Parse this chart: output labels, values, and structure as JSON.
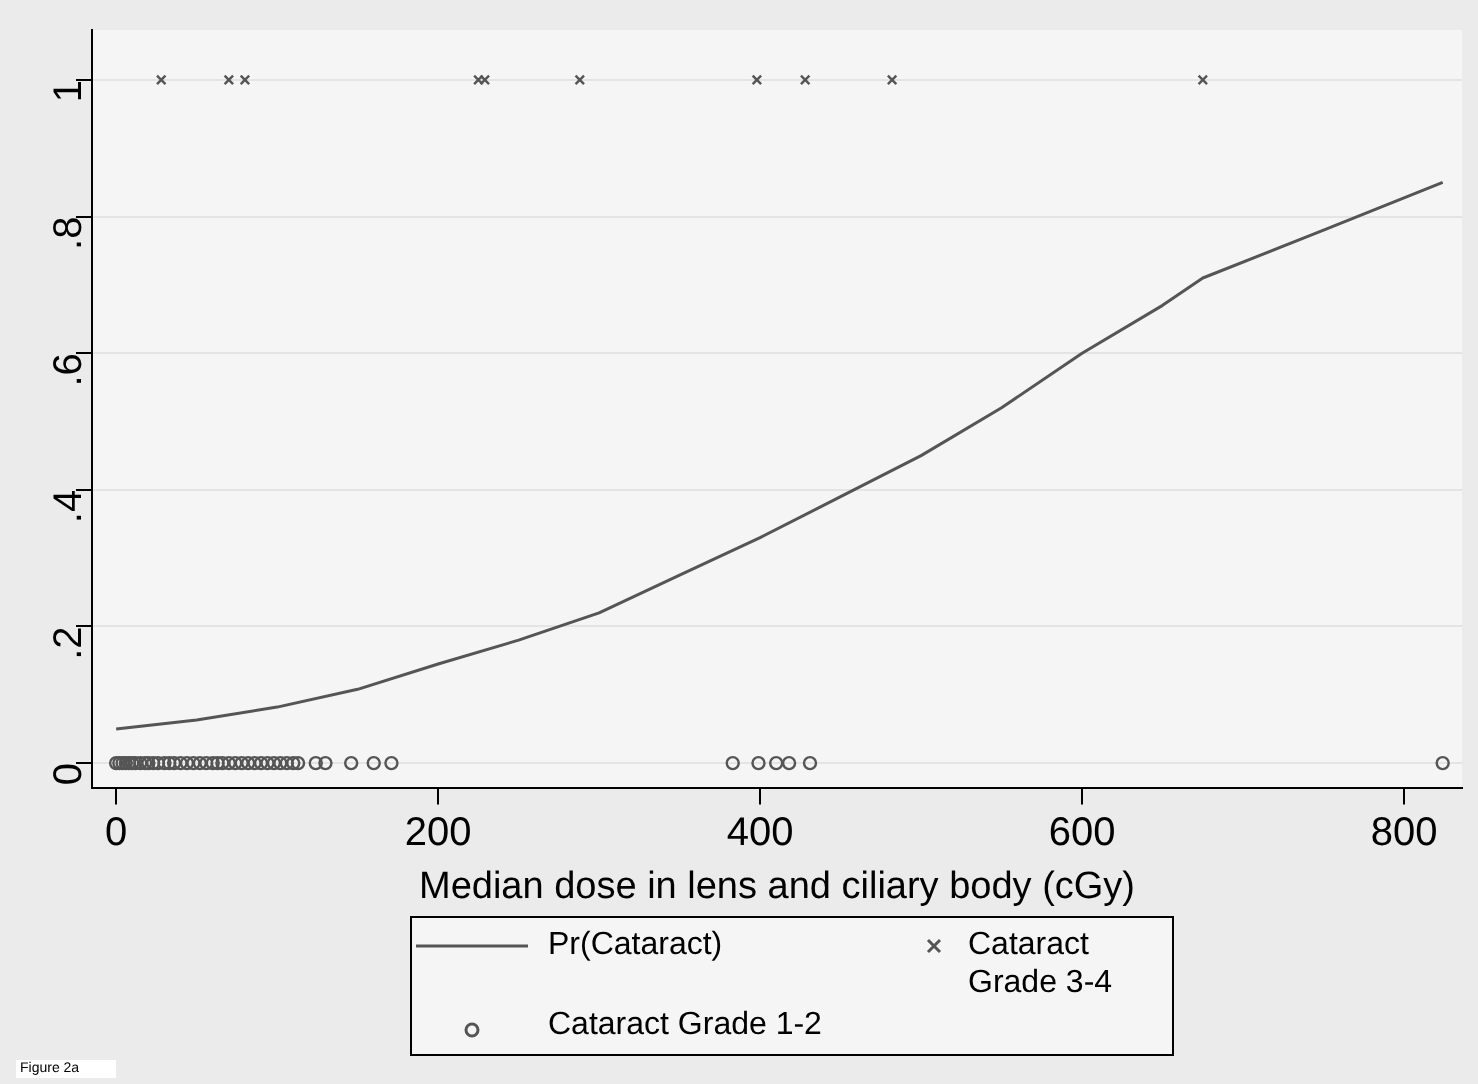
{
  "chart_data": {
    "type": "scatter",
    "xlabel": "Median dose in lens and ciliary body (cGy)",
    "xlim": [
      -15,
      836
    ],
    "xticks": [
      0,
      200,
      400,
      600,
      800
    ],
    "ylim": [
      -0.037,
      1.073
    ],
    "yticks": [
      {
        "value": 0,
        "label": "0"
      },
      {
        "value": 0.2,
        "label": ".2"
      },
      {
        "value": 0.4,
        "label": ".4"
      },
      {
        "value": 0.6,
        "label": ".6"
      },
      {
        "value": 0.8,
        "label": ".8"
      },
      {
        "value": 1,
        "label": "1"
      }
    ],
    "grid": "y",
    "legend": "bottom",
    "annotations": [
      "Figure 2a"
    ],
    "series": [
      {
        "name": "Pr(Cataract)",
        "type": "line",
        "color": "#555555",
        "marker": "none",
        "x": [
          0,
          50,
          100,
          150,
          200,
          250,
          300,
          350,
          400,
          450,
          500,
          550,
          600,
          650,
          675,
          750,
          824
        ],
        "values": [
          0.05,
          0.063,
          0.082,
          0.108,
          0.145,
          0.18,
          0.22,
          0.275,
          0.33,
          0.39,
          0.45,
          0.52,
          0.6,
          0.67,
          0.71,
          0.78,
          0.85
        ]
      },
      {
        "name": "Cataract Grade 3-4",
        "type": "scatter",
        "color": "#555555",
        "marker": "cross",
        "x": [
          28,
          70,
          80,
          225,
          229,
          288,
          398,
          428,
          482,
          675
        ],
        "values": [
          1,
          1,
          1,
          1,
          1,
          1,
          1,
          1,
          1,
          1
        ]
      },
      {
        "name": "Cataract Grade 1-2",
        "type": "scatter",
        "color": "#555555",
        "marker": "circle",
        "x": [
          0,
          2,
          4,
          6,
          8,
          10,
          12,
          15,
          18,
          20,
          23,
          26,
          30,
          33,
          36,
          40,
          44,
          48,
          52,
          56,
          60,
          63,
          66,
          70,
          74,
          78,
          82,
          86,
          90,
          94,
          98,
          102,
          106,
          110,
          113,
          124,
          130,
          146,
          160,
          171,
          383,
          399,
          410,
          418,
          431,
          824
        ],
        "values": [
          0,
          0,
          0,
          0,
          0,
          0,
          0,
          0,
          0,
          0,
          0,
          0,
          0,
          0,
          0,
          0,
          0,
          0,
          0,
          0,
          0,
          0,
          0,
          0,
          0,
          0,
          0,
          0,
          0,
          0,
          0,
          0,
          0,
          0,
          0,
          0,
          0,
          0,
          0,
          0,
          0,
          0,
          0,
          0,
          0,
          0
        ]
      }
    ]
  }
}
